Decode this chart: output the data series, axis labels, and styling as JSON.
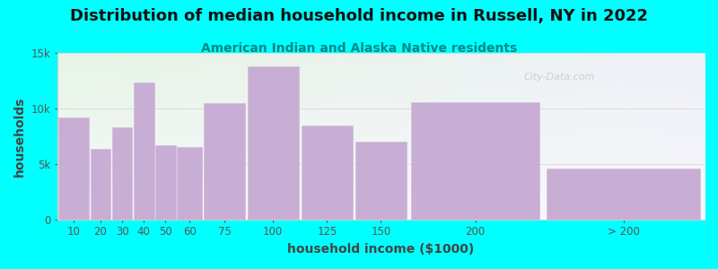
{
  "title": "Distribution of median household income in Russell, NY in 2022",
  "subtitle": "American Indian and Alaska Native residents",
  "xlabel": "household income ($1000)",
  "ylabel": "households",
  "background_color": "#00FFFF",
  "plot_bg_top_left": "#e6f5e4",
  "plot_bg_top_right": "#eef0f8",
  "plot_bg_bottom": "#f8f8fc",
  "bar_color": "#c8aed4",
  "bar_edge_color": "#d0bcd8",
  "bin_edges": [
    0,
    15,
    25,
    35,
    45,
    55,
    67.5,
    87.5,
    112.5,
    137.5,
    162.5,
    225,
    300
  ],
  "bin_labels": [
    "10",
    "20",
    "30",
    "40",
    "50",
    "60",
    "75",
    "100",
    "125",
    "150",
    "200",
    "> 200"
  ],
  "values": [
    9200,
    6400,
    8300,
    12300,
    6700,
    6500,
    10500,
    13800,
    8500,
    7000,
    10600,
    4600
  ],
  "ylim": [
    0,
    15000
  ],
  "yticks": [
    0,
    5000,
    10000,
    15000
  ],
  "ytick_labels": [
    "0",
    "5k",
    "10k",
    "15k"
  ],
  "title_fontsize": 13,
  "subtitle_fontsize": 10,
  "axis_label_fontsize": 10,
  "tick_fontsize": 8.5,
  "watermark": "City-Data.com"
}
